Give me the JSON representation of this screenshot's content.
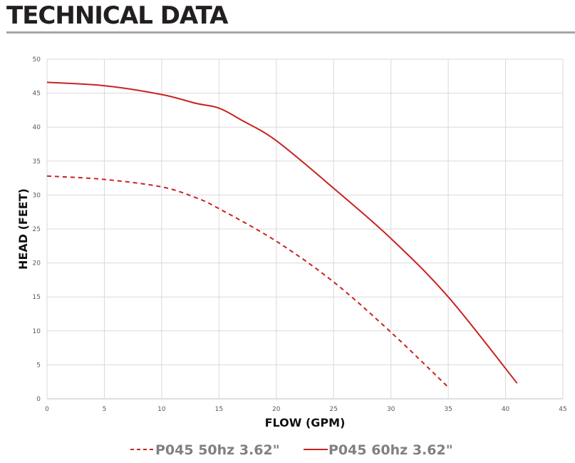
{
  "page": {
    "title": "TECHNICAL DATA"
  },
  "chart_data": {
    "type": "line",
    "title": "",
    "xlabel": "FLOW (GPM)",
    "ylabel": "HEAD (FEET)",
    "xlim": [
      0,
      45
    ],
    "ylim": [
      0,
      50
    ],
    "x_ticks": [
      0,
      5,
      10,
      15,
      20,
      25,
      30,
      35,
      40,
      45
    ],
    "y_ticks": [
      0,
      5,
      10,
      15,
      20,
      25,
      30,
      35,
      40,
      45,
      50
    ],
    "grid": true,
    "legend_position": "bottom",
    "series": [
      {
        "name": "P045 50hz 3.62\"",
        "style": "dashed",
        "color": "#c8231f",
        "points": [
          [
            0,
            32.8
          ],
          [
            5,
            32.3
          ],
          [
            10,
            31.2
          ],
          [
            13,
            29.6
          ],
          [
            15,
            28.0
          ],
          [
            20,
            23.2
          ],
          [
            25,
            17.2
          ],
          [
            30,
            9.8
          ],
          [
            35,
            1.7
          ]
        ]
      },
      {
        "name": "P045 60hz 3.62\"",
        "style": "solid",
        "color": "#c8231f",
        "points": [
          [
            0,
            46.6
          ],
          [
            5,
            46.1
          ],
          [
            10,
            44.8
          ],
          [
            13,
            43.5
          ],
          [
            15,
            42.8
          ],
          [
            17,
            41.0
          ],
          [
            20,
            38.0
          ],
          [
            25,
            31.0
          ],
          [
            30,
            23.6
          ],
          [
            35,
            15.0
          ],
          [
            41,
            2.3
          ]
        ]
      }
    ]
  }
}
